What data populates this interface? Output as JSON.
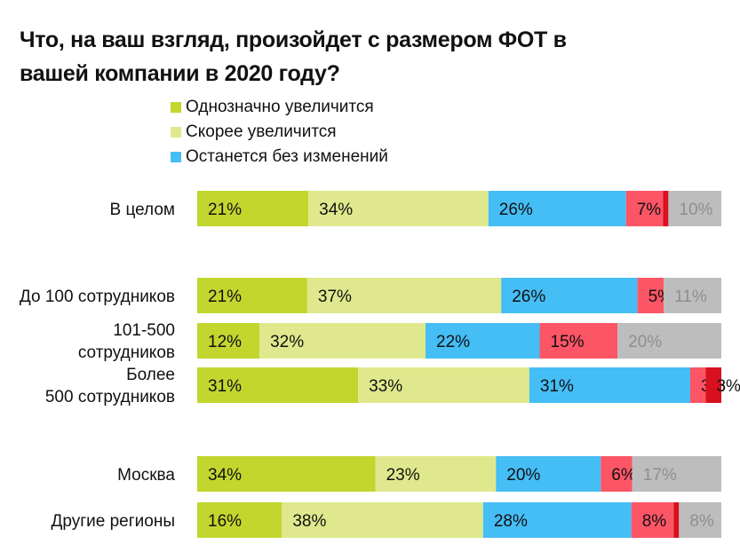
{
  "title": "Что, на ваш взгляд, произойдет с размером ФОТ в вашей компании в 2020 году?",
  "legend": [
    {
      "label": "Однозначно увеличится",
      "color": "#c2d62e"
    },
    {
      "label": "Скорее увеличится",
      "color": "#dfe88c"
    },
    {
      "label": "Останется без изменений",
      "color": "#45bdf5"
    }
  ],
  "chart_data": {
    "type": "bar",
    "orientation": "horizontal",
    "stacked": true,
    "title": "Что, на ваш взгляд, произойдет с размером ФОТ в вашей компании в 2020 году?",
    "xlabel": "",
    "ylabel": "",
    "xlim": [
      0,
      100
    ],
    "categories": [
      "В целом",
      "До 100 сотрудников",
      "101-500 сотрудников",
      "Более 500 сотрудников",
      "Москва",
      "Другие регионы"
    ],
    "series": [
      {
        "name": "Однозначно увеличится",
        "color": "#c2d62e",
        "values": [
          21,
          21,
          12,
          31,
          34,
          16
        ]
      },
      {
        "name": "Скорее увеличится",
        "color": "#dfe88c",
        "values": [
          34,
          37,
          32,
          33,
          23,
          38
        ]
      },
      {
        "name": "Останется без изменений",
        "color": "#45bdf5",
        "values": [
          26,
          26,
          22,
          31,
          20,
          28
        ]
      },
      {
        "name": "",
        "color": "#fc5566",
        "values": [
          7,
          5,
          15,
          3,
          6,
          8
        ]
      },
      {
        "name": "",
        "color": "#d9101f",
        "values": [
          1,
          0,
          0,
          3,
          0,
          1
        ]
      },
      {
        "name": "",
        "color": "#bdbdbd",
        "values": [
          10,
          11,
          20,
          0,
          17,
          8
        ]
      }
    ]
  }
}
